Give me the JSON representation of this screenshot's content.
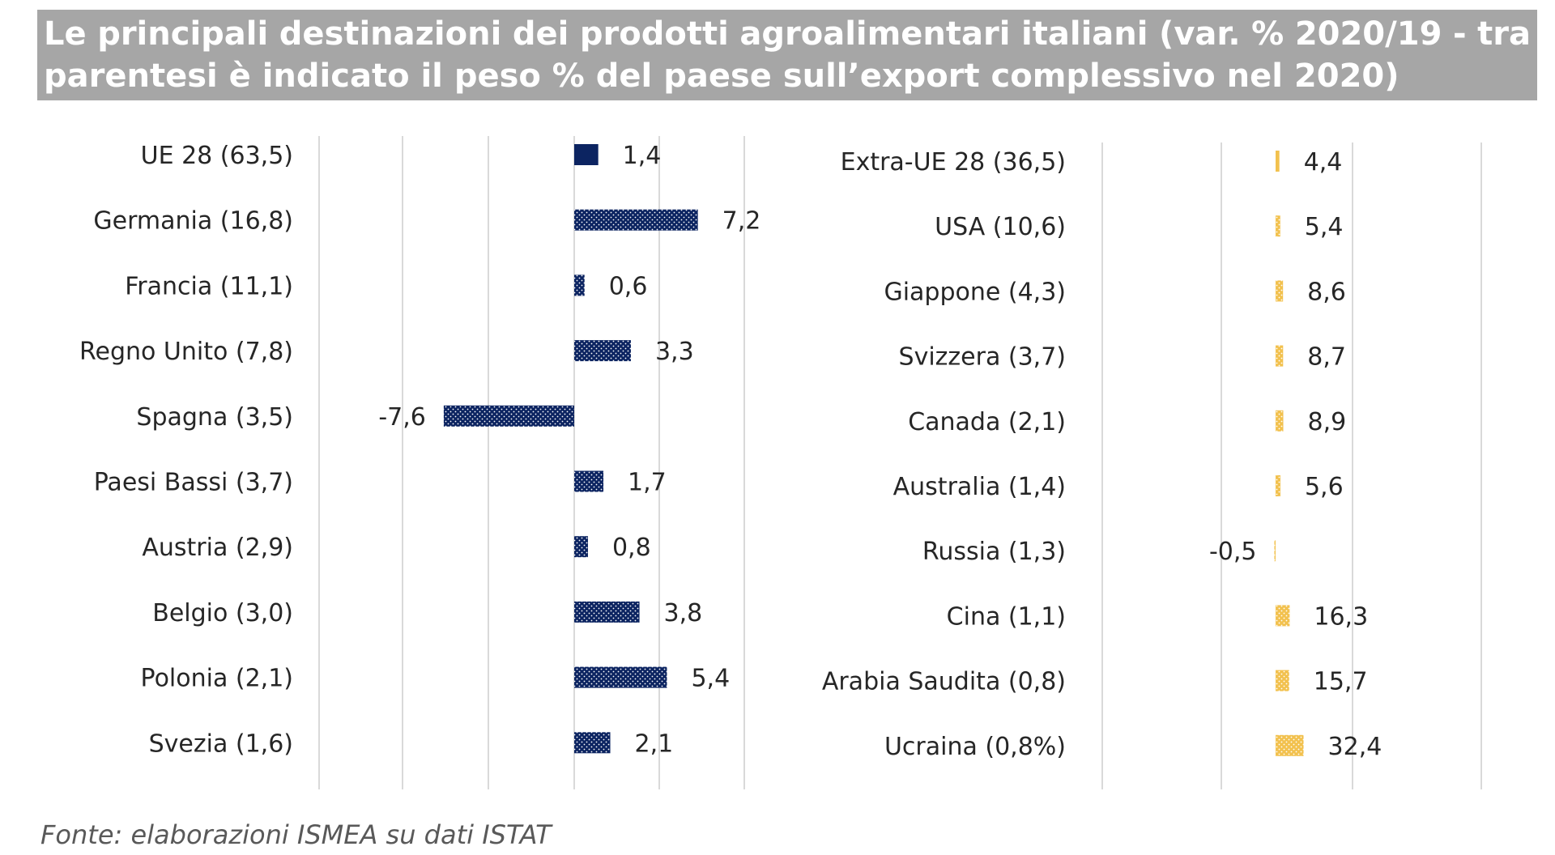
{
  "title": "Le principali destinazioni dei prodotti agroalimentari italiani (var. % 2020/19 - tra parentesi è indicato il peso % del paese sull’export complessivo nel 2020)",
  "title_line1": "Le principali destinazioni dei prodotti agroalimentari italiani (var. % 2020/19 - tra",
  "title_line2": "parentesi è indicato il peso % del paese sull’export complessivo nel 2020)",
  "source": "Fonte: elaborazioni ISMEA su dati ISTAT",
  "colors": {
    "title_bg": "#a6a6a6",
    "title_text": "#ffffff",
    "eu_bar": "#0c2461",
    "extra_eu_bar": "#f2c14e",
    "grid": "#d9d9d9",
    "text": "#262626"
  },
  "chart_data": [
    {
      "type": "bar",
      "orientation": "horizontal",
      "name": "UE 28",
      "categories": [
        "UE 28 (63,5)",
        "Germania (16,8)",
        "Francia (11,1)",
        "Regno Unito (7,8)",
        "Spagna (3,5)",
        "Paesi Bassi  (3,7)",
        "Austria (2,9)",
        "Belgio (3,0)",
        "Polonia (2,1)",
        "Svezia (1,6)"
      ],
      "values": [
        1.4,
        7.2,
        0.6,
        3.3,
        -7.6,
        1.7,
        0.8,
        3.8,
        5.4,
        2.1
      ],
      "value_labels": [
        "1,4",
        "7,2",
        "0,6",
        "3,3",
        "-7,6",
        "1,7",
        "0,8",
        "3,8",
        "5,4",
        "2,1"
      ],
      "xlim": [
        -15,
        15
      ],
      "grid": true,
      "first_bar_style": "solid",
      "other_bars_style": "dotted"
    },
    {
      "type": "bar",
      "orientation": "horizontal",
      "name": "Extra-UE 28",
      "categories": [
        "Extra-UE 28 (36,5)",
        "USA (10,6)",
        "Giappone (4,3)",
        "Svizzera (3,7)",
        "Canada  (2,1)",
        "Australia (1,4)",
        "Russia (1,3)",
        "Cina (1,1)",
        "Arabia Saudita (0,8)",
        "Ucraina (0,8%)"
      ],
      "values": [
        4.4,
        5.4,
        8.6,
        8.7,
        8.9,
        5.6,
        -0.5,
        16.3,
        15.7,
        32.4
      ],
      "value_labels": [
        "4,4",
        "5,4",
        "8,6",
        "8,7",
        "8,9",
        "5,6",
        "-0,5",
        "16,3",
        "15,7",
        "32,4"
      ],
      "xlim": [
        -100,
        200
      ],
      "grid": true,
      "first_bar_style": "solid",
      "other_bars_style": "dotted"
    }
  ]
}
